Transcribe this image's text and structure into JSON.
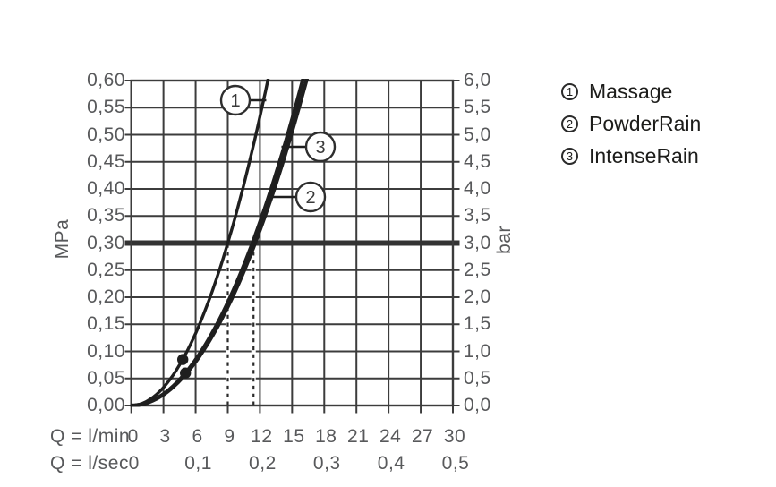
{
  "chart_data": {
    "type": "line",
    "description": "Shower spray flow-rate / pressure curves",
    "y_axis_left": {
      "label": "MPa",
      "range": [
        0,
        0.6
      ],
      "tick_step": 0.05,
      "tick_labels": [
        "0,00",
        "0,05",
        "0,10",
        "0,15",
        "0,20",
        "0,25",
        "0,30",
        "0,35",
        "0,40",
        "0,45",
        "0,50",
        "0,55",
        "0,60"
      ]
    },
    "y_axis_right": {
      "label": "bar",
      "range": [
        0,
        6
      ],
      "tick_step": 0.5,
      "tick_labels": [
        "0,0",
        "0,5",
        "1,0",
        "1,5",
        "2,0",
        "2,5",
        "3,0",
        "3,5",
        "4,0",
        "4,5",
        "5,0",
        "5,5",
        "6,0"
      ]
    },
    "x_axis": {
      "range_lmin": [
        0,
        30
      ],
      "row_lmin": {
        "label": "Q = l/min",
        "ticks": [
          0,
          3,
          6,
          9,
          12,
          15,
          18,
          21,
          24,
          27,
          30
        ]
      },
      "row_lsec": {
        "label": "Q = l/sec",
        "ticks": [
          {
            "label": "0",
            "at_lmin": 0
          },
          {
            "label": "0,1",
            "at_lmin": 6
          },
          {
            "label": "0,2",
            "at_lmin": 12
          },
          {
            "label": "0,3",
            "at_lmin": 18
          },
          {
            "label": "0,4",
            "at_lmin": 24
          },
          {
            "label": "0,5",
            "at_lmin": 30
          }
        ]
      }
    },
    "reference_line": {
      "pressure_mpa": 0.3,
      "pressure_bar": 3.0
    },
    "dashed_guides_lmin": [
      9.0,
      11.4
    ],
    "curve_model": "pressure_mpa = 0.3 * (q_lmin / flow_at_3bar_lmin)^2",
    "series": [
      {
        "id": "1",
        "name": "Massage",
        "flow_at_3bar_lmin": 9.0,
        "marker_point": {
          "q_lmin": 4.8,
          "p_mpa": 0.085
        }
      },
      {
        "id": "2",
        "name": "PowderRain",
        "flow_at_3bar_lmin": 11.55,
        "marker_point": null
      },
      {
        "id": "3",
        "name": "IntenseRain",
        "flow_at_3bar_lmin": 11.3,
        "marker_point": {
          "q_lmin": 5.05,
          "p_mpa": 0.06
        }
      }
    ]
  },
  "legend": {
    "items": [
      {
        "number": "1",
        "label": "Massage"
      },
      {
        "number": "2",
        "label": "PowderRain"
      },
      {
        "number": "3",
        "label": "IntenseRain"
      }
    ]
  },
  "colors": {
    "background": "#ffffff",
    "grid": "#3c3c3c",
    "curve": "#1f1f1f",
    "axis_text": "#58595b",
    "legend_text": "#1d1d1b",
    "reference_line": "#333333",
    "dashed_guide": "#2a2a2a"
  }
}
